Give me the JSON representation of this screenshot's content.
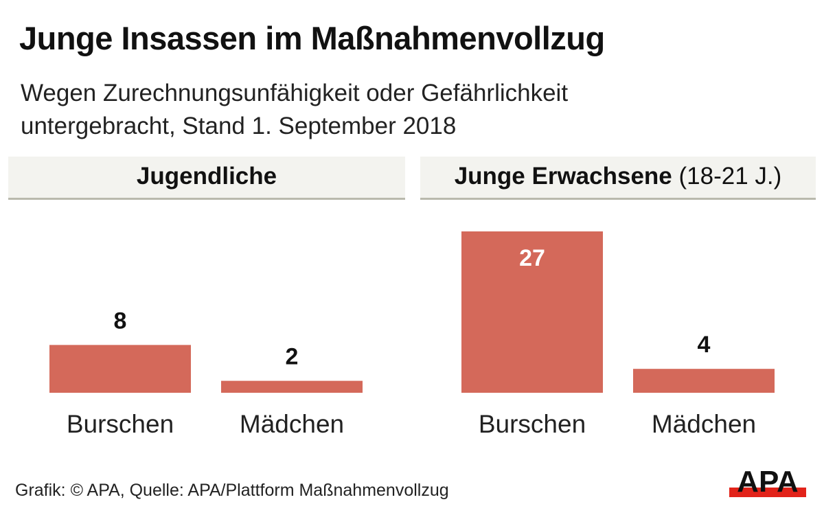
{
  "chart_data": [
    {
      "type": "bar",
      "title": "Jugendliche",
      "categories": [
        "Burschen",
        "Mädchen"
      ],
      "values": [
        8,
        2
      ],
      "ylim": [
        0,
        27
      ]
    },
    {
      "type": "bar",
      "title": "Junge Erwachsene",
      "title_suffix": "(18-21 J.)",
      "categories": [
        "Burschen",
        "Mädchen"
      ],
      "values": [
        27,
        4
      ],
      "ylim": [
        0,
        27
      ]
    }
  ],
  "title": "Junge Insassen im Maßnahmenvollzug",
  "subtitle_line1": "Wegen Zurechnungsunfähigkeit oder Gefährlichkeit",
  "subtitle_line2": "untergebracht, Stand 1. September 2018",
  "source": "Grafik: © APA, Quelle: APA/Plattform Maßnahmenvollzug",
  "logo_text": "APA",
  "colors": {
    "bar": "#d4695a",
    "header_bg": "#f3f3ef",
    "logo_red": "#e2231a"
  }
}
